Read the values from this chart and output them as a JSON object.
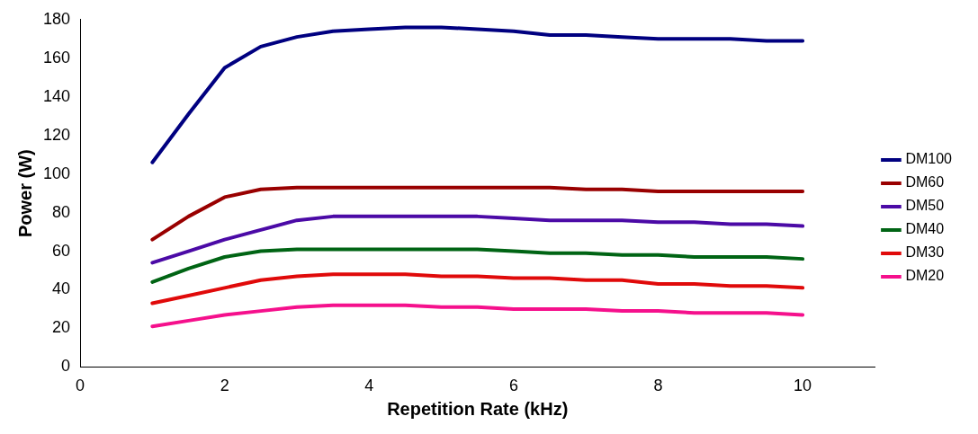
{
  "chart_data": {
    "type": "line",
    "xlabel": "Repetition Rate (kHz)",
    "ylabel": "Power (W)",
    "x": [
      1,
      1.5,
      2,
      2.5,
      3,
      3.5,
      4,
      4.5,
      5,
      5.5,
      6,
      6.5,
      7,
      7.5,
      8,
      8.5,
      9,
      9.5,
      10
    ],
    "series": [
      {
        "name": "DM100",
        "color": "#000080",
        "values": [
          106,
          131,
          155,
          166,
          171,
          174,
          175,
          176,
          176,
          175,
          174,
          172,
          172,
          171,
          170,
          170,
          170,
          169,
          169
        ]
      },
      {
        "name": "DM60",
        "color": "#990000",
        "values": [
          66,
          78,
          88,
          92,
          93,
          93,
          93,
          93,
          93,
          93,
          93,
          93,
          92,
          92,
          91,
          91,
          91,
          91,
          91
        ]
      },
      {
        "name": "DM50",
        "color": "#4b0aa6",
        "values": [
          54,
          60,
          66,
          71,
          76,
          78,
          78,
          78,
          78,
          78,
          77,
          76,
          76,
          76,
          75,
          75,
          74,
          74,
          73
        ]
      },
      {
        "name": "DM40",
        "color": "#006414",
        "values": [
          44,
          51,
          57,
          60,
          61,
          61,
          61,
          61,
          61,
          61,
          60,
          59,
          59,
          58,
          58,
          57,
          57,
          57,
          56
        ]
      },
      {
        "name": "DM30",
        "color": "#e00a0a",
        "values": [
          33,
          37,
          41,
          45,
          47,
          48,
          48,
          48,
          47,
          47,
          46,
          46,
          45,
          45,
          43,
          43,
          42,
          42,
          41
        ]
      },
      {
        "name": "DM20",
        "color": "#f5108c",
        "values": [
          21,
          24,
          27,
          29,
          31,
          32,
          32,
          32,
          31,
          31,
          30,
          30,
          30,
          29,
          29,
          28,
          28,
          28,
          27
        ]
      }
    ],
    "xlim": [
      0,
      11
    ],
    "xticks": [
      0,
      2,
      4,
      6,
      8,
      10
    ],
    "ylim": [
      0,
      180
    ],
    "yticks": [
      0,
      20,
      40,
      60,
      80,
      100,
      120,
      140,
      160,
      180
    ],
    "grid": false,
    "legend": "right",
    "marker": "none",
    "line_style": "solid"
  }
}
